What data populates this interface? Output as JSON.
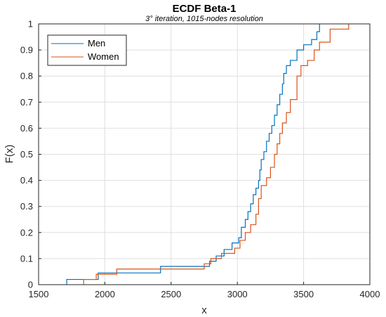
{
  "chart_data": {
    "type": "line",
    "title": "ECDF Beta-1",
    "subtitle": "3° iteration, 1015-nodes resolution",
    "xlabel": "x",
    "ylabel": "F(x)",
    "xlim": [
      1500,
      4000
    ],
    "ylim": [
      0,
      1
    ],
    "xticks": [
      1500,
      2000,
      2500,
      3000,
      3500,
      4000
    ],
    "xtick_labels": [
      "1500",
      "2000",
      "2500",
      "3000",
      "3500",
      "4000"
    ],
    "yticks": [
      0,
      0.1,
      0.2,
      0.3,
      0.4,
      0.5,
      0.6,
      0.7,
      0.8,
      0.9,
      1
    ],
    "ytick_labels": [
      "0",
      "0.1",
      "0.2",
      "0.3",
      "0.4",
      "0.5",
      "0.6",
      "0.7",
      "0.8",
      "0.9",
      "1"
    ],
    "grid": true,
    "legend_position": "top-left",
    "series": [
      {
        "name": "Men",
        "color": "#0072BD",
        "x": [
          1712,
          1950,
          2420,
          2790,
          2840,
          2900,
          2960,
          3010,
          3030,
          3060,
          3080,
          3100,
          3120,
          3140,
          3160,
          3170,
          3180,
          3200,
          3220,
          3240,
          3260,
          3280,
          3300,
          3320,
          3340,
          3350,
          3370,
          3400,
          3450,
          3500,
          3560,
          3600,
          3620
        ],
        "y": [
          0.02,
          0.045,
          0.07,
          0.09,
          0.11,
          0.135,
          0.16,
          0.18,
          0.22,
          0.25,
          0.28,
          0.31,
          0.345,
          0.37,
          0.4,
          0.44,
          0.48,
          0.51,
          0.55,
          0.58,
          0.61,
          0.65,
          0.69,
          0.73,
          0.77,
          0.81,
          0.84,
          0.86,
          0.9,
          0.92,
          0.94,
          0.97,
          1.0
        ]
      },
      {
        "name": "Women",
        "color": "#D95319",
        "x": [
          1840,
          1935,
          2090,
          2750,
          2800,
          2880,
          2980,
          3020,
          3060,
          3100,
          3140,
          3160,
          3180,
          3220,
          3250,
          3280,
          3300,
          3320,
          3340,
          3370,
          3400,
          3450,
          3480,
          3530,
          3580,
          3620,
          3700,
          3840
        ],
        "y": [
          0.02,
          0.04,
          0.06,
          0.08,
          0.1,
          0.12,
          0.14,
          0.17,
          0.2,
          0.23,
          0.27,
          0.33,
          0.38,
          0.41,
          0.45,
          0.5,
          0.54,
          0.58,
          0.62,
          0.66,
          0.71,
          0.8,
          0.84,
          0.86,
          0.9,
          0.93,
          0.98,
          1.0
        ]
      }
    ]
  }
}
